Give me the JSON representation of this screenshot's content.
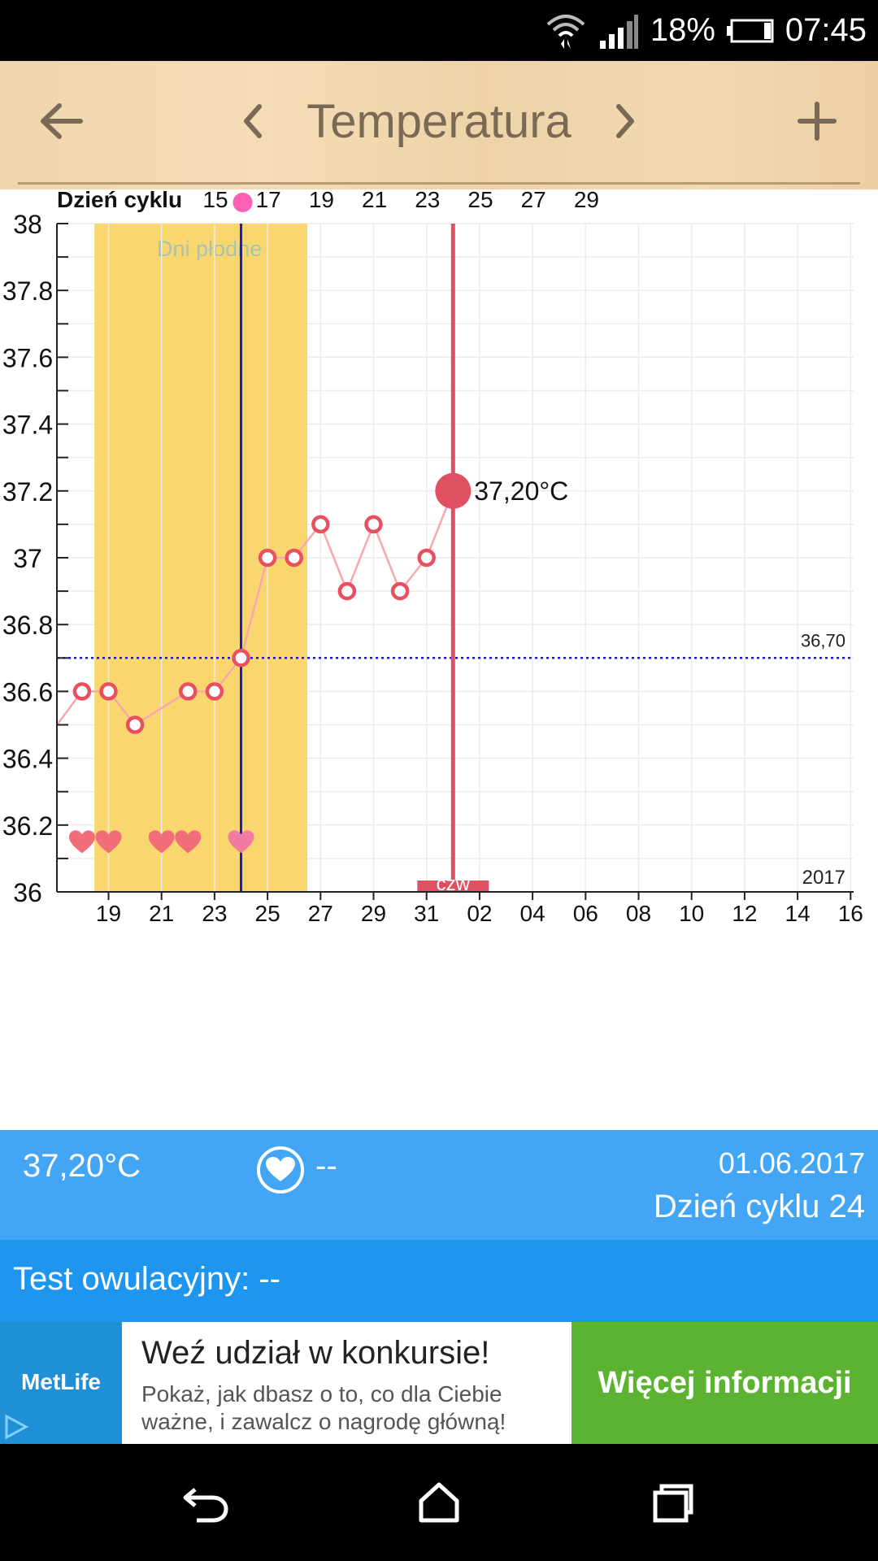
{
  "status_bar": {
    "battery": "18%",
    "time": "07:45"
  },
  "toolbar": {
    "title": "Temperatura"
  },
  "chart_data": {
    "type": "line",
    "top_axis_label": "Dzień cyklu",
    "top_ticks": [
      "15",
      "17",
      "19",
      "21",
      "23",
      "25",
      "27",
      "29"
    ],
    "bottom_ticks": [
      "19",
      "21",
      "23",
      "25",
      "27",
      "29",
      "31",
      "02",
      "04",
      "06",
      "08",
      "10",
      "12",
      "14",
      "16"
    ],
    "y_ticks": [
      "38",
      "37.8",
      "37.6",
      "37.4",
      "37.2",
      "37",
      "36.8",
      "36.6",
      "36.4",
      "36.2",
      "36"
    ],
    "ylim": [
      36,
      38
    ],
    "fertile_label": "Dni płodne",
    "fertile_range_days": [
      19,
      26
    ],
    "ovulation_day": 24,
    "cover_line": 36.7,
    "cover_line_label": "36,70",
    "year_label": "2017",
    "selected": {
      "day": 32,
      "value": 37.2,
      "label": "37,20°C",
      "weekday_label": "czw"
    },
    "series": [
      {
        "x": [
          17,
          18,
          19,
          20,
          22,
          23,
          24,
          25,
          26,
          27,
          28,
          29,
          30,
          31,
          32
        ],
        "values": [
          36.5,
          36.6,
          36.6,
          36.5,
          36.6,
          36.6,
          36.7,
          37.0,
          37.0,
          37.1,
          36.9,
          37.1,
          36.9,
          37.0,
          37.2
        ]
      }
    ],
    "heart_days": [
      18,
      19,
      21,
      22,
      24
    ]
  },
  "info": {
    "temperature": "37,20°C",
    "intercourse_value": "--",
    "date": "01.06.2017",
    "cycle_day": "Dzień cyklu 24"
  },
  "ovulation_test": {
    "label": "Test owulacyjny: --"
  },
  "ad": {
    "logo": "MetLife",
    "title": "Weź udział w konkursie!",
    "body": "Pokaż, jak dbasz o to, co dla Ciebie ważne, i zawalcz o nagrodę główną!",
    "cta": "Więcej informacji"
  },
  "colors": {
    "accent_red": "#e05063",
    "fertile": "#f9d76e",
    "info_blue": "#42a5f5",
    "ovulation_blue": "#1e96f0",
    "cta_green": "#5cb332"
  }
}
